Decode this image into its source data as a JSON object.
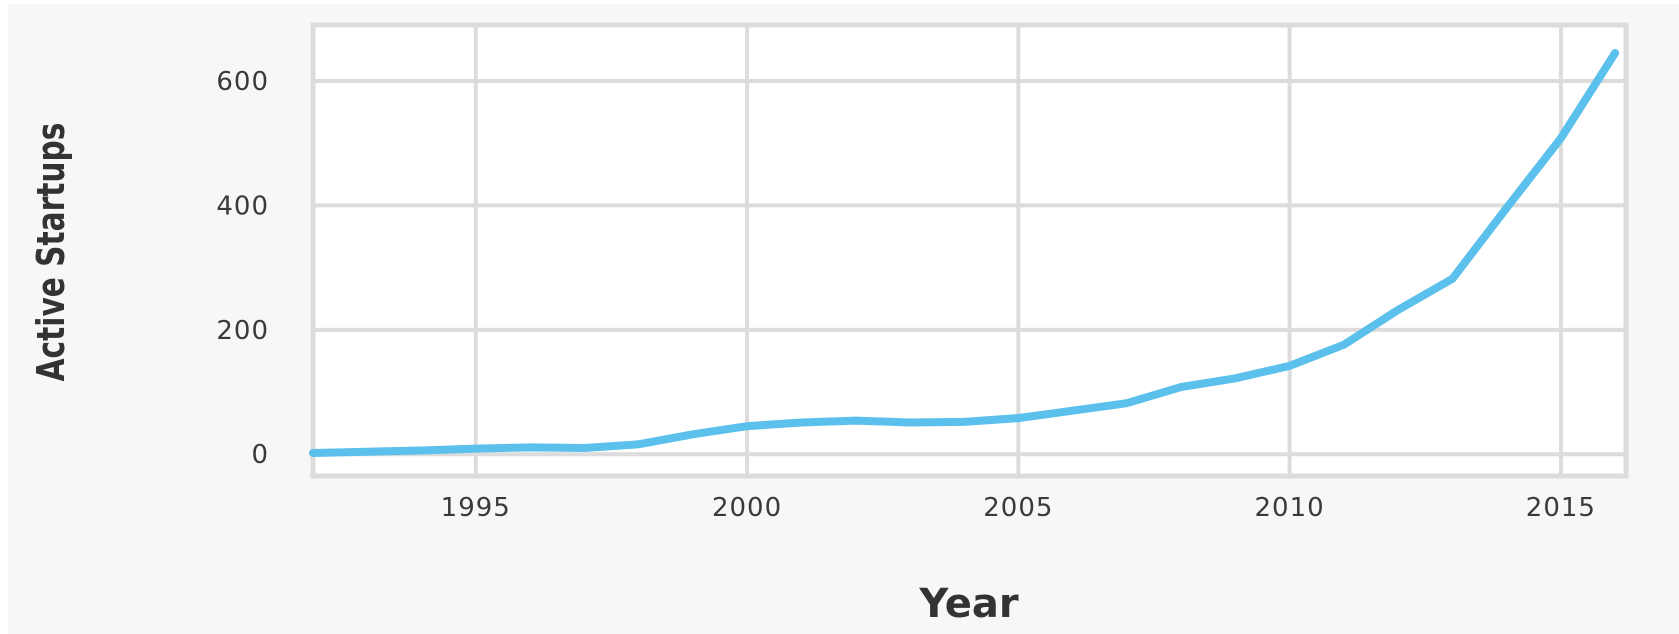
{
  "chart_data": {
    "type": "line",
    "title": "",
    "xlabel": "Year",
    "ylabel": "Active Startups",
    "xlim": [
      1992,
      2016.2
    ],
    "ylim": [
      -35,
      690
    ],
    "xticks": [
      1995,
      2000,
      2005,
      2010,
      2015
    ],
    "yticks": [
      0,
      200,
      400,
      600
    ],
    "grid": true,
    "legend": "none",
    "series": [
      {
        "color": "#5bc0eb",
        "points": [
          [
            1992,
            2
          ],
          [
            1993,
            4
          ],
          [
            1994,
            6
          ],
          [
            1995,
            9
          ],
          [
            1996,
            11
          ],
          [
            1997,
            10
          ],
          [
            1998,
            16
          ],
          [
            1999,
            32
          ],
          [
            2000,
            45
          ],
          [
            2001,
            51
          ],
          [
            2002,
            54
          ],
          [
            2003,
            51
          ],
          [
            2004,
            52
          ],
          [
            2005,
            58
          ],
          [
            2006,
            70
          ],
          [
            2007,
            82
          ],
          [
            2008,
            108
          ],
          [
            2009,
            122
          ],
          [
            2010,
            142
          ],
          [
            2011,
            176
          ],
          [
            2012,
            232
          ],
          [
            2013,
            282
          ],
          [
            2014,
            396
          ],
          [
            2015,
            508
          ],
          [
            2016,
            645
          ]
        ]
      }
    ]
  },
  "colors": {
    "outer_background": "#ffffff",
    "figure_background": "#f7f7f7",
    "plot_background": "#ffffff",
    "grid": "#dcdcdc",
    "line": "#5bc0eb"
  }
}
